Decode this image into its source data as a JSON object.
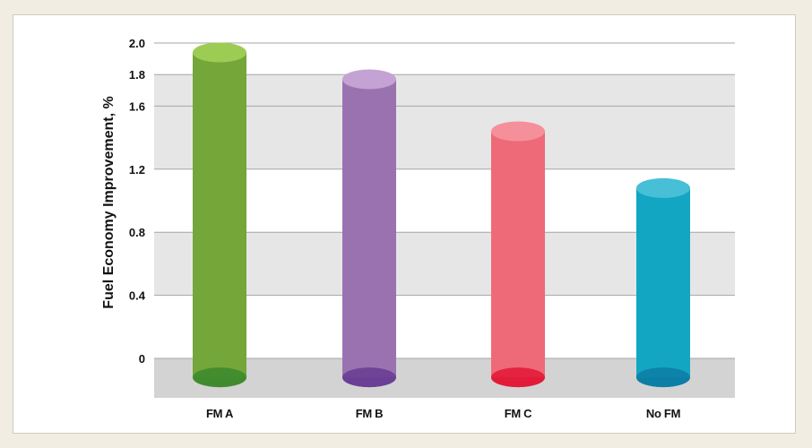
{
  "chart_data": {
    "type": "bar",
    "title": "",
    "xlabel": "",
    "ylabel": "Fuel Economy Improvement, %",
    "ylim": [
      -0.25,
      2.0
    ],
    "yticks": [
      {
        "value": 0,
        "label": "0"
      },
      {
        "value": 0.4,
        "label": "0.4"
      },
      {
        "value": 0.8,
        "label": "0.8"
      },
      {
        "value": 1.2,
        "label": "1.2"
      },
      {
        "value": 1.6,
        "label": "1.6"
      },
      {
        "value": 1.8,
        "label": "1.8"
      },
      {
        "value": 2.0,
        "label": "2.0"
      }
    ],
    "categories": [
      "FM A",
      "FM B",
      "FM C",
      "No FM"
    ],
    "values": [
      1.94,
      1.77,
      1.44,
      1.08
    ],
    "baseline": -0.12,
    "colors": [
      {
        "body": "#75a63a",
        "top": "#9dcc55",
        "bottom": "#3f8b2e"
      },
      {
        "body": "#9a72b0",
        "top": "#c4a2d3",
        "bottom": "#6a3f95"
      },
      {
        "body": "#ee6a78",
        "top": "#f5909a",
        "bottom": "#e11c38"
      },
      {
        "body": "#13a6c2",
        "top": "#47bfd6",
        "bottom": "#0d7fa6"
      }
    ],
    "bands": [
      {
        "from": -0.25,
        "to": 0,
        "color": "#d3d3d3"
      },
      {
        "from": 0.4,
        "to": 0.8,
        "color": "#e6e6e6"
      },
      {
        "from": 1.2,
        "to": 1.6,
        "color": "#e6e6e6"
      },
      {
        "from": 1.6,
        "to": 1.8,
        "color": "#e6e6e6"
      }
    ],
    "grid": true,
    "legend": "none"
  }
}
